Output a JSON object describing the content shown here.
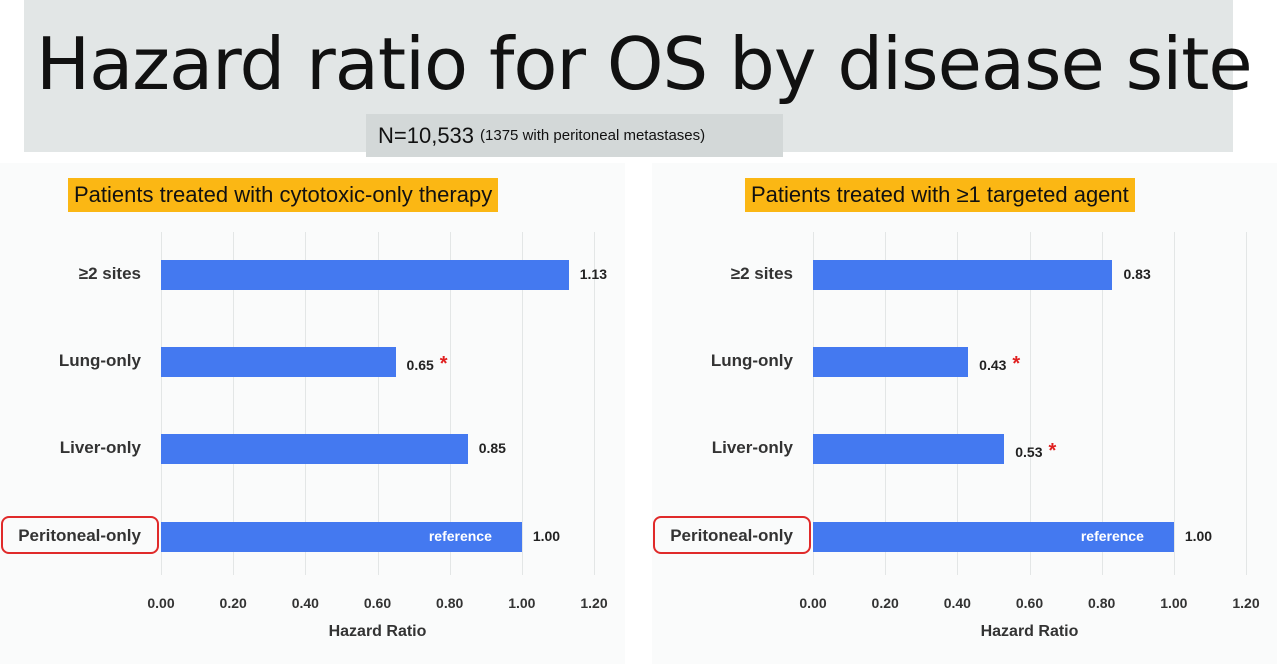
{
  "header": {
    "title": "Hazard ratio for OS by disease site",
    "n_label": "N=10,533",
    "n_detail": "(1375 with peritoneal metastases)"
  },
  "colors": {
    "bar": "#4479f0",
    "highlight": "#fbb714",
    "significance": "#e02020"
  },
  "chart_data": [
    {
      "type": "bar",
      "orientation": "horizontal",
      "title": "Patients treated with cytotoxic-only therapy",
      "categories": [
        "≥2 sites",
        "Lung-only",
        "Liver-only",
        "Peritoneal-only"
      ],
      "values": [
        1.13,
        0.65,
        0.85,
        1.0
      ],
      "value_labels": [
        "1.13",
        "0.65",
        "0.85",
        "1.00"
      ],
      "significant": [
        false,
        true,
        false,
        false
      ],
      "bar_annotations": [
        "",
        "",
        "",
        "reference"
      ],
      "xlabel": "Hazard Ratio",
      "xlim": [
        0,
        1.2
      ],
      "xticks": [
        "0.00",
        "0.20",
        "0.40",
        "0.60",
        "0.80",
        "1.00",
        "1.20"
      ],
      "grid": true,
      "significance_marker": "*"
    },
    {
      "type": "bar",
      "orientation": "horizontal",
      "title": "Patients treated with ≥1 targeted agent",
      "categories": [
        "≥2 sites",
        "Lung-only",
        "Liver-only",
        "Peritoneal-only"
      ],
      "values": [
        0.83,
        0.43,
        0.53,
        1.0
      ],
      "value_labels": [
        "0.83",
        "0.43",
        "0.53",
        "1.00"
      ],
      "significant": [
        false,
        true,
        true,
        false
      ],
      "bar_annotations": [
        "",
        "",
        "",
        "reference"
      ],
      "xlabel": "Hazard Ratio",
      "xlim": [
        0,
        1.2
      ],
      "xticks": [
        "0.00",
        "0.20",
        "0.40",
        "0.60",
        "0.80",
        "1.00",
        "1.20"
      ],
      "grid": true,
      "significance_marker": "*"
    }
  ]
}
